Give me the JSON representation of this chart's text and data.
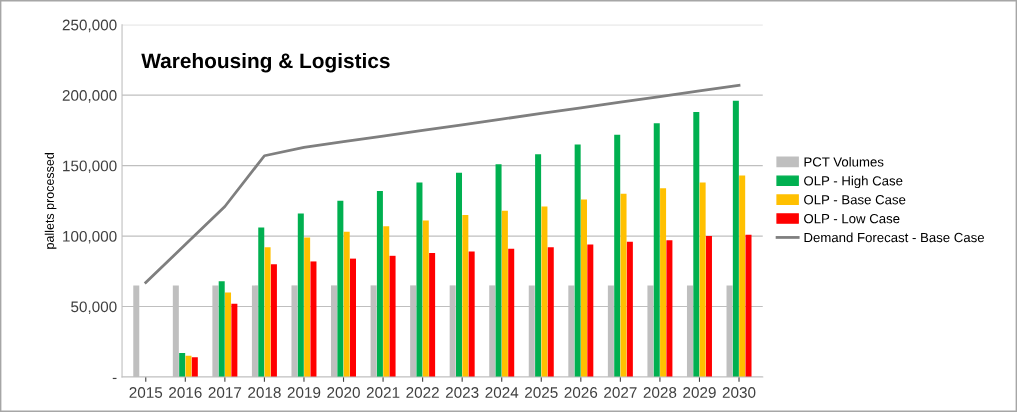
{
  "chart_data": {
    "type": "bar",
    "title": "Warehousing & Logistics",
    "ylabel": "pallets processed",
    "categories": [
      "2015",
      "2016",
      "2017",
      "2018",
      "2019",
      "2020",
      "2021",
      "2022",
      "2023",
      "2024",
      "2025",
      "2026",
      "2027",
      "2028",
      "2029",
      "2030"
    ],
    "series": [
      {
        "name": "PCT Volumes",
        "color": "#bfbfbf",
        "values": [
          65000,
          65000,
          65000,
          65000,
          65000,
          65000,
          65000,
          65000,
          65000,
          65000,
          65000,
          65000,
          65000,
          65000,
          65000,
          65000
        ]
      },
      {
        "name": "OLP - High Case",
        "color": "#00b050",
        "values": [
          null,
          17000,
          68000,
          106000,
          116000,
          125000,
          132000,
          138000,
          145000,
          151000,
          158000,
          165000,
          172000,
          180000,
          188000,
          196000
        ]
      },
      {
        "name": "OLP - Base Case",
        "color": "#ffc000",
        "values": [
          null,
          15000,
          60000,
          92000,
          99000,
          103000,
          107000,
          111000,
          115000,
          118000,
          121000,
          126000,
          130000,
          134000,
          138000,
          143000
        ]
      },
      {
        "name": "OLP - Low Case",
        "color": "#ff0000",
        "values": [
          null,
          14000,
          52000,
          80000,
          82000,
          84000,
          86000,
          88000,
          89000,
          91000,
          92000,
          94000,
          96000,
          97000,
          100000,
          101000
        ]
      },
      {
        "name": "Demand Forecast - Base Case",
        "type": "line",
        "color": "#7f7f7f",
        "values": [
          67000,
          94000,
          121000,
          157000,
          163000,
          167000,
          171000,
          175000,
          179000,
          183000,
          187000,
          191000,
          195000,
          199000,
          203000,
          207000
        ]
      }
    ],
    "ylim": [
      0,
      250000
    ],
    "yticks": [
      {
        "value": 0,
        "label": "-"
      },
      {
        "value": 50000,
        "label": "50,000"
      },
      {
        "value": 100000,
        "label": "100,000"
      },
      {
        "value": 150000,
        "label": "150,000"
      },
      {
        "value": 200000,
        "label": "200,000"
      },
      {
        "value": 250000,
        "label": "250,000"
      }
    ],
    "grid": "y",
    "legend": "right"
  }
}
